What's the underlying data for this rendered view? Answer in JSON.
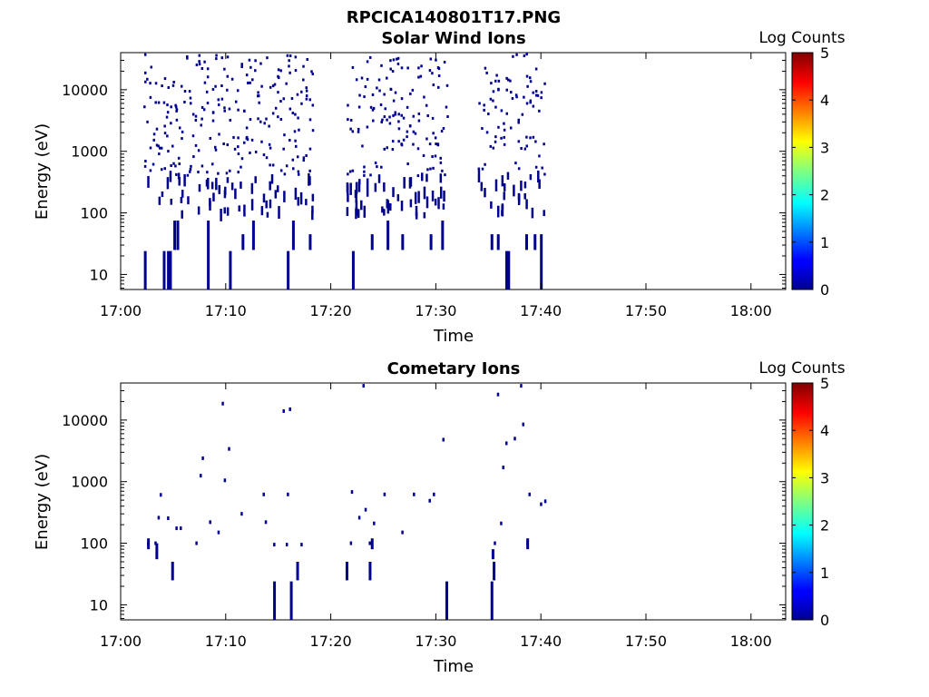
{
  "figure_title": "RPCICA140801T17.PNG",
  "chart_data": [
    {
      "type": "heatmap",
      "title": "Solar Wind Ions",
      "xlabel": "Time",
      "ylabel": "Energy (eV)",
      "x_ticks": [
        "17:00",
        "17:10",
        "17:20",
        "17:30",
        "17:40",
        "17:50",
        "18:00"
      ],
      "x_tick_minutes": [
        0,
        10,
        20,
        30,
        40,
        50,
        60
      ],
      "xlim_minutes": [
        0,
        63.3
      ],
      "y_scale": "log",
      "ylim": [
        5.7,
        40000
      ],
      "y_ticks": [
        10,
        100,
        1000,
        10000
      ],
      "y_tick_labels": [
        "10",
        "100",
        "1000",
        "10000"
      ],
      "colorbar": {
        "label": "Log Counts",
        "range": [
          0,
          5
        ],
        "ticks": [
          "0",
          "1",
          "2",
          "3",
          "4",
          "5"
        ],
        "colormap": "jet"
      },
      "cell_color_log_counts": 0,
      "cell_color": "#00008f",
      "active_intervals_minutes": [
        [
          2.3,
          18.3
        ],
        [
          21.6,
          31.1
        ],
        [
          34.1,
          40.4
        ]
      ],
      "streaks": [
        {
          "t": 2.3,
          "e_low": 5.7,
          "e_high": 24
        },
        {
          "t": 4.1,
          "e_low": 5.7,
          "e_high": 24
        },
        {
          "t": 4.5,
          "e_low": 5.7,
          "e_high": 24
        },
        {
          "t": 4.7,
          "e_low": 5.7,
          "e_high": 24
        },
        {
          "t": 5.1,
          "e_low": 25,
          "e_high": 75
        },
        {
          "t": 5.4,
          "e_low": 25,
          "e_high": 75
        },
        {
          "t": 8.3,
          "e_low": 5.7,
          "e_high": 75
        },
        {
          "t": 10.4,
          "e_low": 5.7,
          "e_high": 24
        },
        {
          "t": 11.6,
          "e_low": 25,
          "e_high": 45
        },
        {
          "t": 12.6,
          "e_low": 25,
          "e_high": 75
        },
        {
          "t": 15.9,
          "e_low": 5.7,
          "e_high": 24
        },
        {
          "t": 16.4,
          "e_low": 25,
          "e_high": 75
        },
        {
          "t": 18.0,
          "e_low": 25,
          "e_high": 45
        },
        {
          "t": 22.1,
          "e_low": 5.7,
          "e_high": 24
        },
        {
          "t": 23.9,
          "e_low": 25,
          "e_high": 45
        },
        {
          "t": 25.4,
          "e_low": 25,
          "e_high": 75
        },
        {
          "t": 26.8,
          "e_low": 25,
          "e_high": 45
        },
        {
          "t": 29.5,
          "e_low": 25,
          "e_high": 45
        },
        {
          "t": 30.6,
          "e_low": 25,
          "e_high": 75
        },
        {
          "t": 35.3,
          "e_low": 25,
          "e_high": 45
        },
        {
          "t": 35.9,
          "e_low": 25,
          "e_high": 45
        },
        {
          "t": 36.7,
          "e_low": 5.7,
          "e_high": 24
        },
        {
          "t": 36.9,
          "e_low": 5.7,
          "e_high": 24
        },
        {
          "t": 38.6,
          "e_low": 25,
          "e_high": 45
        },
        {
          "t": 39.4,
          "e_low": 25,
          "e_high": 45
        },
        {
          "t": 40.0,
          "e_low": 5.7,
          "e_high": 45
        }
      ]
    },
    {
      "type": "heatmap",
      "title": "Cometary Ions",
      "xlabel": "Time",
      "ylabel": "Energy (eV)",
      "x_ticks": [
        "17:00",
        "17:10",
        "17:20",
        "17:30",
        "17:40",
        "17:50",
        "18:00"
      ],
      "x_tick_minutes": [
        0,
        10,
        20,
        30,
        40,
        50,
        60
      ],
      "xlim_minutes": [
        0,
        63.3
      ],
      "y_scale": "log",
      "ylim": [
        5.7,
        40000
      ],
      "y_ticks": [
        10,
        100,
        1000,
        10000
      ],
      "y_tick_labels": [
        "10",
        "100",
        "1000",
        "10000"
      ],
      "colorbar": {
        "label": "Log Counts",
        "range": [
          0,
          5
        ],
        "ticks": [
          "0",
          "1",
          "2",
          "3",
          "4",
          "5"
        ],
        "colormap": "jet"
      },
      "cell_color_log_counts": 0,
      "cell_color": "#00008f",
      "points": [
        {
          "t": 2.6,
          "e": 95
        },
        {
          "t": 3.3,
          "e": 100
        },
        {
          "t": 3.6,
          "e": 260
        },
        {
          "t": 3.8,
          "e": 610
        },
        {
          "t": 4.5,
          "e": 255
        },
        {
          "t": 5.3,
          "e": 175
        },
        {
          "t": 5.7,
          "e": 175
        },
        {
          "t": 7.2,
          "e": 100
        },
        {
          "t": 7.6,
          "e": 1250
        },
        {
          "t": 7.8,
          "e": 2400
        },
        {
          "t": 8.5,
          "e": 220
        },
        {
          "t": 9.3,
          "e": 150
        },
        {
          "t": 9.7,
          "e": 18500
        },
        {
          "t": 9.9,
          "e": 1050
        },
        {
          "t": 10.3,
          "e": 3400
        },
        {
          "t": 11.5,
          "e": 300
        },
        {
          "t": 13.6,
          "e": 620
        },
        {
          "t": 13.8,
          "e": 220
        },
        {
          "t": 14.6,
          "e": 95
        },
        {
          "t": 15.5,
          "e": 14000
        },
        {
          "t": 16.1,
          "e": 15000
        },
        {
          "t": 15.9,
          "e": 620
        },
        {
          "t": 15.8,
          "e": 95
        },
        {
          "t": 17.2,
          "e": 95
        },
        {
          "t": 21.9,
          "e": 100
        },
        {
          "t": 22.0,
          "e": 680
        },
        {
          "t": 22.7,
          "e": 260
        },
        {
          "t": 23.1,
          "e": 36000
        },
        {
          "t": 23.3,
          "e": 350
        },
        {
          "t": 23.7,
          "e": 100
        },
        {
          "t": 24.1,
          "e": 210
        },
        {
          "t": 25.1,
          "e": 620
        },
        {
          "t": 26.8,
          "e": 150
        },
        {
          "t": 27.9,
          "e": 620
        },
        {
          "t": 29.4,
          "e": 490
        },
        {
          "t": 29.8,
          "e": 620
        },
        {
          "t": 30.7,
          "e": 4800
        },
        {
          "t": 35.6,
          "e": 100
        },
        {
          "t": 35.9,
          "e": 26000
        },
        {
          "t": 36.2,
          "e": 210
        },
        {
          "t": 36.4,
          "e": 1700
        },
        {
          "t": 36.7,
          "e": 4200
        },
        {
          "t": 37.5,
          "e": 5000
        },
        {
          "t": 38.1,
          "e": 36000
        },
        {
          "t": 38.3,
          "e": 8500
        },
        {
          "t": 38.7,
          "e": 100
        },
        {
          "t": 38.9,
          "e": 620
        },
        {
          "t": 40.0,
          "e": 430
        },
        {
          "t": 40.4,
          "e": 480
        }
      ],
      "streaks": [
        {
          "t": 2.6,
          "e_low": 80,
          "e_high": 120
        },
        {
          "t": 3.4,
          "e_low": 55,
          "e_high": 100
        },
        {
          "t": 4.9,
          "e_low": 25,
          "e_high": 50
        },
        {
          "t": 14.6,
          "e_low": 5.7,
          "e_high": 24
        },
        {
          "t": 16.2,
          "e_low": 5.7,
          "e_high": 24
        },
        {
          "t": 16.8,
          "e_low": 25,
          "e_high": 50
        },
        {
          "t": 21.5,
          "e_low": 25,
          "e_high": 50
        },
        {
          "t": 23.7,
          "e_low": 25,
          "e_high": 50
        },
        {
          "t": 23.9,
          "e_low": 80,
          "e_high": 120
        },
        {
          "t": 31.0,
          "e_low": 5.7,
          "e_high": 24
        },
        {
          "t": 35.3,
          "e_low": 5.7,
          "e_high": 24
        },
        {
          "t": 35.5,
          "e_low": 25,
          "e_high": 50
        },
        {
          "t": 35.4,
          "e_low": 55,
          "e_high": 80
        },
        {
          "t": 38.7,
          "e_low": 80,
          "e_high": 120
        }
      ]
    }
  ]
}
